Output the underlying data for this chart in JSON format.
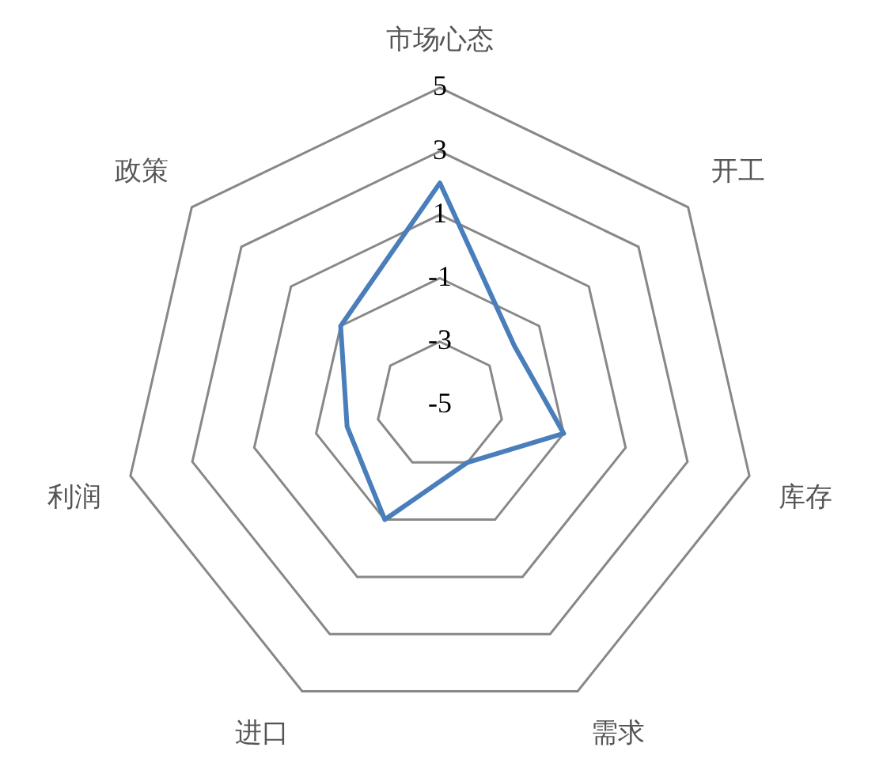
{
  "chart_data": {
    "type": "radar",
    "categories": [
      "市场心态",
      "开工",
      "库存",
      "需求",
      "进口",
      "利润",
      "政策"
    ],
    "series": [
      {
        "color": "#4a7ebb",
        "values": [
          2,
          -2,
          -1,
          -3,
          -1,
          -2,
          -1
        ]
      }
    ],
    "ylim": [
      -5,
      5
    ],
    "yticks": [
      -5,
      -3,
      -1,
      1,
      3,
      5
    ],
    "grid": true,
    "legend": false,
    "marker": "none",
    "line_style": "solid"
  }
}
